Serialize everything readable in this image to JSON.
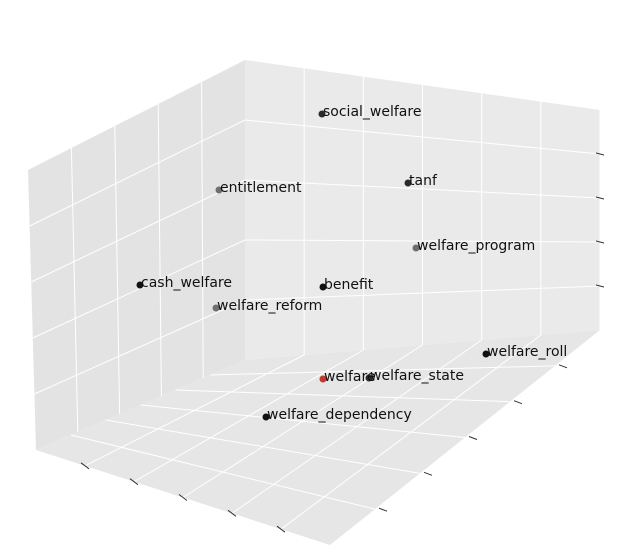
{
  "chart_data": {
    "type": "scatter",
    "projection": "3d",
    "title": "",
    "grid": true,
    "colors": {
      "background": "#ffffff",
      "pane": "#e8e8e8",
      "grid": "#ffffff",
      "highlight": "#c0392b",
      "point_dark": "#111111",
      "point_gray": "#6f6f6f"
    },
    "points": [
      {
        "label": "social_welfare",
        "color": "#2b2b2b"
      },
      {
        "label": "tanf",
        "color": "#2b2b2b"
      },
      {
        "label": "entitlement",
        "color": "#6f6f6f"
      },
      {
        "label": "welfare_program",
        "color": "#6f6f6f"
      },
      {
        "label": "cash_welfare",
        "color": "#111111"
      },
      {
        "label": "benefit",
        "color": "#111111"
      },
      {
        "label": "welfare_reform",
        "color": "#6f6f6f"
      },
      {
        "label": "welfare_roll",
        "color": "#111111"
      },
      {
        "label": "welfare",
        "color": "#c0392b"
      },
      {
        "label": "welfare_state",
        "color": "#2b2b2b"
      },
      {
        "label": "welfare_dependency",
        "color": "#111111"
      }
    ]
  }
}
